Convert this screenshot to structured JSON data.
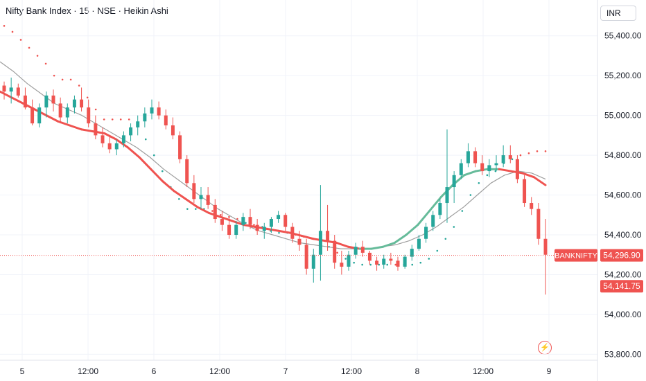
{
  "header": {
    "title": "Nifty Bank Index · 15 · NSE · Heikin Ashi"
  },
  "currency_button": {
    "label": "INR"
  },
  "icons": {
    "replay": "lightning-icon"
  },
  "colors": {
    "up": "#26a69a",
    "down": "#ef5350",
    "ma_down": "#ef5350",
    "ma_up": "#66bb9a",
    "ma_slow": "#9e9e9e",
    "sar_up": "#26a69a",
    "sar_down": "#ef5350"
  },
  "chart_data": {
    "type": "candlestick",
    "price_axis": {
      "ticks": [
        "55,400.00",
        "55,200.00",
        "55,000.00",
        "54,800.00",
        "54,600.00",
        "54,400.00",
        "54,200.00",
        "54,000.00",
        "53,800.00"
      ],
      "range": [
        53770,
        55580
      ]
    },
    "time_axis": {
      "ticks": [
        "5",
        "12:00",
        "6",
        "12:00",
        "7",
        "12:00",
        "8",
        "12:00",
        "9"
      ]
    },
    "last_price": {
      "symbol": "BANKNIFTY",
      "value": "54,296.90",
      "level": 54296.9
    },
    "crosshair_price": {
      "value": "54,141.75",
      "level": 54141.75
    },
    "candles": [
      [
        55150,
        55170,
        55080,
        55120
      ],
      [
        55120,
        55190,
        55060,
        55140
      ],
      [
        55140,
        55160,
        55090,
        55100
      ],
      [
        55100,
        55140,
        55030,
        55040
      ],
      [
        55040,
        55080,
        54950,
        54960
      ],
      [
        54960,
        55060,
        54940,
        55040
      ],
      [
        55040,
        55120,
        54990,
        55100
      ],
      [
        55100,
        55130,
        55020,
        55060
      ],
      [
        55060,
        55090,
        54960,
        54990
      ],
      [
        54990,
        55060,
        54960,
        55040
      ],
      [
        55040,
        55100,
        55010,
        55080
      ],
      [
        55080,
        55140,
        55020,
        55040
      ],
      [
        55040,
        55080,
        54940,
        54960
      ],
      [
        54960,
        55000,
        54880,
        54900
      ],
      [
        54900,
        54940,
        54840,
        54860
      ],
      [
        54860,
        54900,
        54810,
        54830
      ],
      [
        54830,
        54880,
        54800,
        54860
      ],
      [
        54860,
        54920,
        54840,
        54900
      ],
      [
        54900,
        54960,
        54870,
        54940
      ],
      [
        54940,
        55000,
        54900,
        54970
      ],
      [
        54970,
        55040,
        54940,
        55010
      ],
      [
        55010,
        55080,
        54980,
        55040
      ],
      [
        55040,
        55070,
        54980,
        55000
      ],
      [
        55000,
        55030,
        54930,
        54950
      ],
      [
        54950,
        54990,
        54880,
        54900
      ],
      [
        54900,
        54920,
        54760,
        54780
      ],
      [
        54780,
        54800,
        54640,
        54660
      ],
      [
        54660,
        54700,
        54560,
        54580
      ],
      [
        54580,
        54640,
        54530,
        54600
      ],
      [
        54600,
        54640,
        54530,
        54550
      ],
      [
        54550,
        54580,
        54460,
        54480
      ],
      [
        54480,
        54520,
        54420,
        54450
      ],
      [
        54450,
        54490,
        54380,
        54400
      ],
      [
        54400,
        54470,
        54380,
        54450
      ],
      [
        54450,
        54510,
        54420,
        54490
      ],
      [
        54490,
        54530,
        54430,
        54450
      ],
      [
        54450,
        54480,
        54400,
        54420
      ],
      [
        54420,
        54460,
        54380,
        54440
      ],
      [
        54440,
        54490,
        54410,
        54480
      ],
      [
        54480,
        54520,
        54460,
        54500
      ],
      [
        54500,
        54510,
        54420,
        54440
      ],
      [
        54440,
        54460,
        54360,
        54380
      ],
      [
        54380,
        54420,
        54320,
        54350
      ],
      [
        54350,
        54380,
        54200,
        54230
      ],
      [
        54230,
        54330,
        54160,
        54300
      ],
      [
        54300,
        54650,
        54170,
        54420
      ],
      [
        54420,
        54550,
        54320,
        54370
      ],
      [
        54370,
        54400,
        54230,
        54260
      ],
      [
        54260,
        54320,
        54200,
        54240
      ],
      [
        54240,
        54320,
        54220,
        54300
      ],
      [
        54300,
        54360,
        54280,
        54340
      ],
      [
        54340,
        54370,
        54290,
        54310
      ],
      [
        54310,
        54320,
        54250,
        54270
      ],
      [
        54270,
        54290,
        54220,
        54250
      ],
      [
        54250,
        54300,
        54230,
        54280
      ],
      [
        54280,
        54310,
        54250,
        54270
      ],
      [
        54270,
        54290,
        54220,
        54240
      ],
      [
        54240,
        54300,
        54230,
        54290
      ],
      [
        54290,
        54350,
        54270,
        54330
      ],
      [
        54330,
        54400,
        54320,
        54380
      ],
      [
        54380,
        54460,
        54360,
        54440
      ],
      [
        54440,
        54520,
        54420,
        54500
      ],
      [
        54500,
        54580,
        54480,
        54560
      ],
      [
        54560,
        54930,
        54460,
        54640
      ],
      [
        54640,
        54720,
        54560,
        54700
      ],
      [
        54700,
        54780,
        54680,
        54760
      ],
      [
        54760,
        54860,
        54740,
        54820
      ],
      [
        54820,
        54840,
        54740,
        54760
      ],
      [
        54760,
        54800,
        54700,
        54720
      ],
      [
        54720,
        54780,
        54690,
        54750
      ],
      [
        54750,
        54800,
        54720,
        54760
      ],
      [
        54760,
        54850,
        54740,
        54800
      ],
      [
        54800,
        54850,
        54760,
        54780
      ],
      [
        54780,
        54800,
        54660,
        54680
      ],
      [
        54680,
        54700,
        54540,
        54560
      ],
      [
        54560,
        54590,
        54500,
        54530
      ],
      [
        54530,
        54560,
        54350,
        54380
      ],
      [
        54380,
        54480,
        54100,
        54300
      ]
    ],
    "ma_fast": [
      55120,
      55090,
      55060,
      55030,
      55000,
      54970,
      54950,
      54930,
      54920,
      54910,
      54880,
      54840,
      54790,
      54730,
      54670,
      54620,
      54580,
      54540,
      54510,
      54490,
      54470,
      54450,
      54440,
      54430,
      54420,
      54410,
      54395,
      54380,
      54370,
      54360,
      54340,
      54330,
      54330,
      54340,
      54360,
      54400,
      54450,
      54520,
      54590,
      54650,
      54700,
      54720,
      54730,
      54730,
      54720,
      54710,
      54690,
      54650
    ],
    "ma_slow": [
      55270,
      55220,
      55160,
      55110,
      55060,
      55030,
      55000,
      54960,
      54920,
      54880,
      54840,
      54790,
      54730,
      54680,
      54630,
      54580,
      54530,
      54490,
      54450,
      54420,
      54400,
      54380,
      54360,
      54350,
      54340,
      54330,
      54330,
      54330,
      54340,
      54350,
      54370,
      54400,
      54440,
      54490,
      54540,
      54600,
      54660,
      54700,
      54720,
      54710,
      54680
    ],
    "sar": [
      55450,
      55420,
      55380,
      55340,
      55300,
      55260,
      55200,
      55180,
      55180,
      55150,
      55090,
      55030,
      54980,
      54980,
      54980,
      54980,
      54950,
      54880,
      54800,
      54720,
      54640,
      54580,
      54530,
      54530,
      54530,
      54520,
      54500,
      54490,
      54480,
      54460,
      54450,
      54440,
      54420,
      54410,
      54410,
      54400,
      54390,
      54380,
      54360,
      54340,
      54310,
      54280,
      54260,
      54250,
      54250,
      54250,
      54250,
      54250,
      54250,
      54250,
      54260,
      54280,
      54320,
      54380,
      54440,
      54520,
      54600,
      54660,
      54700,
      54720,
      54760,
      54780,
      54800,
      54810,
      54820,
      54820
    ]
  }
}
